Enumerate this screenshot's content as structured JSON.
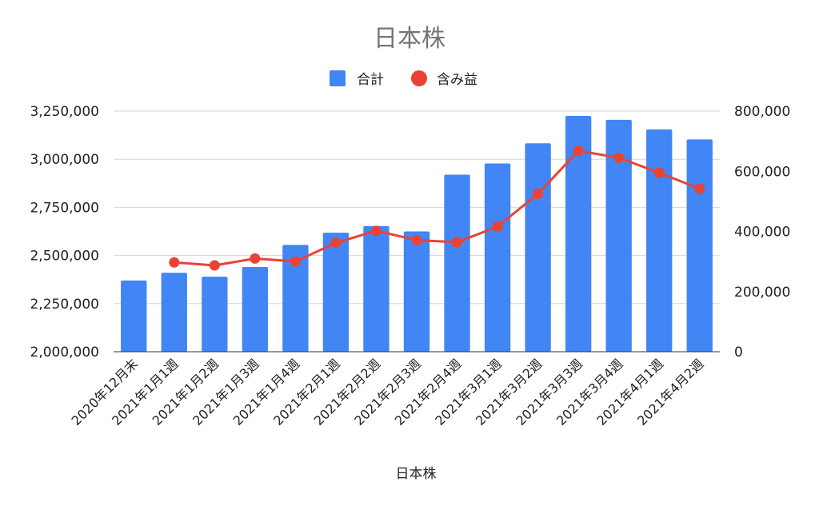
{
  "chart_data": {
    "type": "bar",
    "title": "日本株",
    "xlabel": "日本株",
    "categories": [
      "2020年12月末",
      "2021年1月1週",
      "2021年1月2週",
      "2021年1月3週",
      "2021年1月4週",
      "2021年2月1週",
      "2021年2月2週",
      "2021年2月3週",
      "2021年2月4週",
      "2021年3月1週",
      "2021年3月2週",
      "2021年3月3週",
      "2021年3月4週",
      "2021年4月1週",
      "2021年4月2週"
    ],
    "series": [
      {
        "name": "合計",
        "type": "bar",
        "axis": "left",
        "color": "#4285f4",
        "values": [
          2370000,
          2410000,
          2390000,
          2440000,
          2555000,
          2618000,
          2653000,
          2625000,
          2920000,
          2978000,
          3083000,
          3225000,
          3205000,
          3155000,
          3103000
        ]
      },
      {
        "name": "含み益",
        "type": "line",
        "axis": "right",
        "color": "#ea4335",
        "values": [
          null,
          297000,
          287000,
          310000,
          300000,
          362000,
          402000,
          371000,
          364000,
          416000,
          525000,
          668000,
          645000,
          595000,
          542000
        ]
      }
    ],
    "ylim_left": [
      2000000,
      3250000
    ],
    "ylim_right": [
      0,
      800000
    ],
    "yticks_left": [
      "2,000,000",
      "2,250,000",
      "2,500,000",
      "2,750,000",
      "3,000,000",
      "3,250,000"
    ],
    "yticks_right": [
      "0",
      "200,000",
      "400,000",
      "600,000",
      "800,000"
    ],
    "grid": true,
    "legend_position": "top"
  }
}
